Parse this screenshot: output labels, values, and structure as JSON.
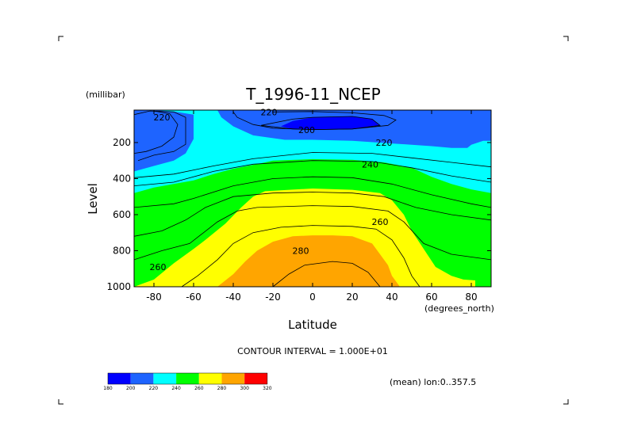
{
  "chart_data": {
    "type": "contour",
    "title": "T_1996-11_NCEP",
    "xlabel": "Latitude",
    "xunits": "(degrees_north)",
    "ylabel": "Level",
    "yunits": "(millibar)",
    "xlim": [
      -90,
      90
    ],
    "ylim": [
      1000,
      20
    ],
    "x_ticks": [
      -80,
      -60,
      -40,
      -20,
      0,
      20,
      40,
      60,
      80
    ],
    "x_tick_labels": [
      "-80",
      "-60",
      "-40",
      "-20",
      "0",
      "20",
      "40",
      "60",
      "80"
    ],
    "y_ticks": [
      200,
      400,
      600,
      800,
      1000
    ],
    "y_tick_labels": [
      "200",
      "400",
      "600",
      "800",
      "1000"
    ],
    "contour_interval_text": "CONTOUR INTERVAL = 1.000E+01",
    "annotation": "(mean) lon:0..357.5",
    "colorbar": {
      "levels": [
        "180",
        "200",
        "220",
        "240",
        "260",
        "280",
        "300",
        "320"
      ],
      "colors": [
        "#0000ff",
        "#1e64ff",
        "#00ffff",
        "#00ff00",
        "#ffff00",
        "#ffa500",
        "#ff0000"
      ]
    },
    "contour_labels": [
      {
        "text": "220",
        "lat": -76,
        "level": 60
      },
      {
        "text": "220",
        "lat": -22,
        "level": 30
      },
      {
        "text": "200",
        "lat": -3,
        "level": 130
      },
      {
        "text": "220",
        "lat": 36,
        "level": 200
      },
      {
        "text": "240",
        "lat": 29,
        "level": 320
      },
      {
        "text": "260",
        "lat": 34,
        "level": 640
      },
      {
        "text": "280",
        "lat": -6,
        "level": 800
      },
      {
        "text": "260",
        "lat": -78,
        "level": 890
      }
    ],
    "bands": [
      {
        "value": 200,
        "color": "#1e64ff",
        "boundary": [
          [
            -90,
            20
          ],
          [
            -80,
            20
          ],
          [
            -70,
            28
          ],
          [
            -60,
            45
          ],
          [
            -60,
            120
          ],
          [
            -60,
            180
          ],
          [
            -64,
            260
          ],
          [
            -70,
            300
          ],
          [
            -80,
            330
          ],
          [
            -90,
            360
          ]
        ]
      },
      {
        "value": 200,
        "color": "#1e64ff",
        "boundary": [
          [
            -48,
            20
          ],
          [
            -46,
            60
          ],
          [
            -40,
            110
          ],
          [
            -30,
            160
          ],
          [
            -14,
            185
          ],
          [
            0,
            185
          ],
          [
            20,
            190
          ],
          [
            40,
            205
          ],
          [
            60,
            220
          ],
          [
            70,
            230
          ],
          [
            78,
            230
          ],
          [
            80,
            212
          ],
          [
            86,
            190
          ],
          [
            90,
            190
          ],
          [
            90,
            20
          ]
        ]
      },
      {
        "value": 190,
        "color": "#0000ff",
        "boundary": [
          [
            -16,
            110
          ],
          [
            -10,
            80
          ],
          [
            0,
            60
          ],
          [
            20,
            55
          ],
          [
            30,
            70
          ],
          [
            34,
            105
          ],
          [
            20,
            125
          ],
          [
            0,
            128
          ],
          [
            -10,
            125
          ]
        ]
      },
      {
        "value": 240,
        "color": "#00ff00",
        "boundary": [
          [
            -90,
            480
          ],
          [
            -80,
            450
          ],
          [
            -70,
            430
          ],
          [
            -60,
            410
          ],
          [
            -50,
            375
          ],
          [
            -40,
            345
          ],
          [
            -26,
            315
          ],
          [
            -20,
            300
          ],
          [
            0,
            292
          ],
          [
            20,
            296
          ],
          [
            36,
            310
          ],
          [
            50,
            340
          ],
          [
            60,
            390
          ],
          [
            70,
            430
          ],
          [
            80,
            460
          ],
          [
            90,
            480
          ],
          [
            90,
            1000
          ],
          [
            -90,
            1000
          ]
        ]
      },
      {
        "value": 260,
        "color": "#ffff00",
        "boundary": [
          [
            -90,
            1000
          ],
          [
            -80,
            960
          ],
          [
            -70,
            870
          ],
          [
            -60,
            790
          ],
          [
            -54,
            740
          ],
          [
            -44,
            650
          ],
          [
            -36,
            560
          ],
          [
            -30,
            500
          ],
          [
            -24,
            470
          ],
          [
            0,
            455
          ],
          [
            20,
            462
          ],
          [
            34,
            480
          ],
          [
            40,
            520
          ],
          [
            46,
            600
          ],
          [
            50,
            690
          ],
          [
            56,
            790
          ],
          [
            62,
            890
          ],
          [
            70,
            940
          ],
          [
            76,
            960
          ],
          [
            82,
            965
          ],
          [
            82,
            1000
          ]
        ]
      },
      {
        "value": 280,
        "color": "#ffa500",
        "boundary": [
          [
            -48,
            1000
          ],
          [
            -40,
            930
          ],
          [
            -34,
            860
          ],
          [
            -28,
            800
          ],
          [
            -20,
            750
          ],
          [
            -10,
            720
          ],
          [
            0,
            715
          ],
          [
            10,
            715
          ],
          [
            20,
            720
          ],
          [
            30,
            760
          ],
          [
            34,
            820
          ],
          [
            38,
            880
          ],
          [
            40,
            940
          ],
          [
            44,
            1000
          ]
        ]
      }
    ],
    "contour_lines": [
      [
        [
          -90,
          45
        ],
        [
          -82,
          25
        ],
        [
          -70,
          30
        ],
        [
          -64,
          60
        ],
        [
          -64,
          140
        ],
        [
          -64,
          210
        ],
        [
          -70,
          250
        ],
        [
          -80,
          270
        ],
        [
          -88,
          300
        ]
      ],
      [
        [
          -80,
          25
        ],
        [
          -72,
          40
        ],
        [
          -68,
          100
        ],
        [
          -70,
          170
        ],
        [
          -76,
          220
        ],
        [
          -84,
          250
        ],
        [
          -90,
          260
        ]
      ],
      [
        [
          -40,
          30
        ],
        [
          -38,
          60
        ],
        [
          -30,
          100
        ],
        [
          -20,
          120
        ],
        [
          0,
          128
        ],
        [
          20,
          125
        ],
        [
          38,
          105
        ],
        [
          42,
          75
        ],
        [
          36,
          50
        ],
        [
          20,
          35
        ],
        [
          0,
          28
        ],
        [
          -20,
          30
        ]
      ],
      [
        [
          -26,
          105
        ],
        [
          -10,
          70
        ],
        [
          0,
          60
        ],
        [
          20,
          55
        ],
        [
          30,
          70
        ],
        [
          34,
          105
        ],
        [
          20,
          125
        ],
        [
          0,
          128
        ],
        [
          -10,
          125
        ],
        [
          -26,
          105
        ]
      ],
      [
        [
          -90,
          395
        ],
        [
          -70,
          375
        ],
        [
          -50,
          330
        ],
        [
          -30,
          290
        ],
        [
          0,
          255
        ],
        [
          30,
          260
        ],
        [
          50,
          285
        ],
        [
          70,
          310
        ],
        [
          90,
          335
        ]
      ],
      [
        [
          -90,
          440
        ],
        [
          -70,
          420
        ],
        [
          -50,
          360
        ],
        [
          -30,
          320
        ],
        [
          0,
          300
        ],
        [
          30,
          305
        ],
        [
          50,
          340
        ],
        [
          70,
          385
        ],
        [
          90,
          420
        ]
      ],
      [
        [
          -90,
          560
        ],
        [
          -70,
          540
        ],
        [
          -60,
          510
        ],
        [
          -40,
          440
        ],
        [
          -20,
          400
        ],
        [
          0,
          390
        ],
        [
          20,
          395
        ],
        [
          40,
          430
        ],
        [
          60,
          490
        ],
        [
          80,
          540
        ],
        [
          90,
          560
        ]
      ],
      [
        [
          -90,
          720
        ],
        [
          -76,
          690
        ],
        [
          -64,
          630
        ],
        [
          -54,
          560
        ],
        [
          -40,
          500
        ],
        [
          -20,
          480
        ],
        [
          0,
          475
        ],
        [
          20,
          480
        ],
        [
          36,
          500
        ],
        [
          52,
          560
        ],
        [
          70,
          600
        ],
        [
          90,
          630
        ]
      ],
      [
        [
          -90,
          850
        ],
        [
          -76,
          800
        ],
        [
          -62,
          760
        ],
        [
          -48,
          640
        ],
        [
          -38,
          580
        ],
        [
          -28,
          560
        ],
        [
          0,
          550
        ],
        [
          20,
          555
        ],
        [
          38,
          580
        ],
        [
          46,
          640
        ],
        [
          56,
          760
        ],
        [
          70,
          820
        ],
        [
          90,
          850
        ]
      ],
      [
        [
          -66,
          1000
        ],
        [
          -58,
          940
        ],
        [
          -48,
          850
        ],
        [
          -40,
          760
        ],
        [
          -30,
          700
        ],
        [
          -16,
          670
        ],
        [
          0,
          660
        ],
        [
          20,
          665
        ],
        [
          32,
          680
        ],
        [
          40,
          740
        ],
        [
          46,
          840
        ],
        [
          50,
          940
        ],
        [
          54,
          1000
        ]
      ],
      [
        [
          -20,
          1000
        ],
        [
          -12,
          930
        ],
        [
          -4,
          880
        ],
        [
          10,
          860
        ],
        [
          20,
          870
        ],
        [
          28,
          920
        ],
        [
          34,
          1000
        ]
      ]
    ]
  }
}
